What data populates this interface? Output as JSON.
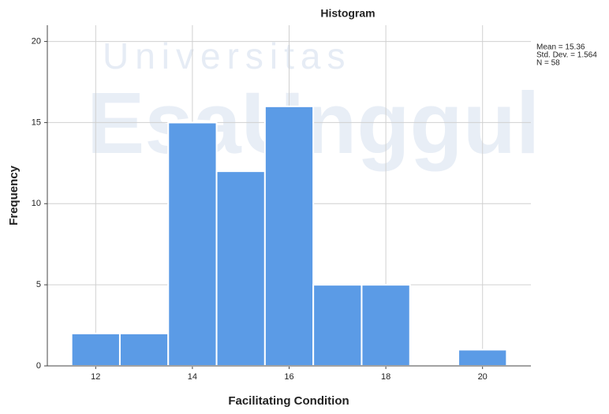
{
  "chart_data": {
    "type": "histogram",
    "title": "Histogram",
    "x_label": "Facilitating Condition",
    "y_label": "Frequency",
    "bins": [
      11.5,
      12.5,
      13.5,
      14.5,
      15.5,
      16.5,
      17.5,
      18.5,
      19.5,
      20.5
    ],
    "counts": [
      2,
      2,
      15,
      12,
      16,
      5,
      5,
      0,
      1
    ],
    "color": "#5b9be6",
    "xlim": [
      11,
      21
    ],
    "xticks": [
      12,
      14,
      16,
      18,
      20
    ],
    "ylim": [
      0,
      21
    ],
    "yticks": [
      0,
      5,
      10,
      15,
      20
    ],
    "grid": true,
    "annotations": [
      "Mean = 15.36",
      "Std. Dev. = 1.564",
      "N = 58"
    ],
    "watermark": [
      "Universitas",
      "EsaUnggul"
    ]
  }
}
